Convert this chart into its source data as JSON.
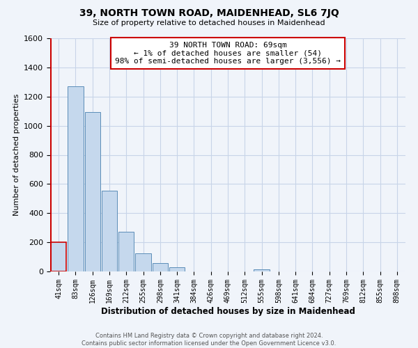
{
  "title": "39, NORTH TOWN ROAD, MAIDENHEAD, SL6 7JQ",
  "subtitle": "Size of property relative to detached houses in Maidenhead",
  "xlabel": "Distribution of detached houses by size in Maidenhead",
  "ylabel": "Number of detached properties",
  "footer_line1": "Contains HM Land Registry data © Crown copyright and database right 2024.",
  "footer_line2": "Contains public sector information licensed under the Open Government Licence v3.0.",
  "bar_labels": [
    "41sqm",
    "83sqm",
    "126sqm",
    "169sqm",
    "212sqm",
    "255sqm",
    "298sqm",
    "341sqm",
    "384sqm",
    "426sqm",
    "469sqm",
    "512sqm",
    "555sqm",
    "598sqm",
    "641sqm",
    "684sqm",
    "727sqm",
    "769sqm",
    "812sqm",
    "855sqm",
    "898sqm"
  ],
  "bar_values": [
    200,
    1270,
    1095,
    555,
    270,
    125,
    58,
    28,
    0,
    0,
    0,
    0,
    14,
    0,
    0,
    0,
    0,
    0,
    0,
    0,
    0
  ],
  "bar_color": "#c5d8ed",
  "bar_edge_color": "#5b8db8",
  "highlight_bar_index": 0,
  "highlight_bar_edge_color": "#cc0000",
  "ylim": [
    0,
    1600
  ],
  "yticks": [
    0,
    200,
    400,
    600,
    800,
    1000,
    1200,
    1400,
    1600
  ],
  "annotation_text_line1": "39 NORTH TOWN ROAD: 69sqm",
  "annotation_text_line2": "← 1% of detached houses are smaller (54)",
  "annotation_text_line3": "98% of semi-detached houses are larger (3,556) →",
  "background_color": "#f0f4fa",
  "grid_color": "#c8d4e8"
}
